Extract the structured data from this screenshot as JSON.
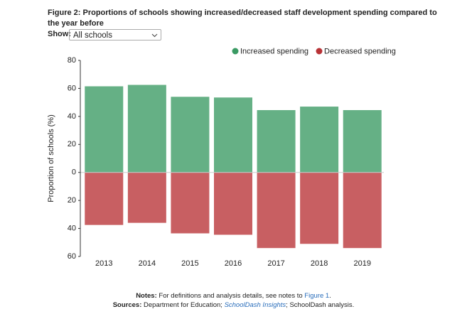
{
  "page": {
    "show_label": "Show:",
    "show_value": "All schools",
    "notes": [
      "Notes:",
      "For definitions and analysis details, see notes to",
      "Figure 1",
      "."
    ],
    "sources": [
      "Sources:",
      "Department for Education;",
      "SchoolDash Insights",
      "; SchoolDash analysis."
    ]
  },
  "chart_data": {
    "type": "diverging_bar",
    "title": "Figure 2: Proportions of schools showing increased/decreased staff development spending compared to the year before",
    "y_label": "Proportion of schools (%)",
    "categories": [
      "2013",
      "2014",
      "2015",
      "2016",
      "2017",
      "2018",
      "2019"
    ],
    "series": [
      {
        "name": "Increased spending",
        "color": "#3a9a63",
        "values": [
          61.5,
          62.5,
          54,
          53.5,
          44.5,
          47,
          44.5
        ]
      },
      {
        "name": "Decreased spending",
        "color": "#b83236",
        "values": [
          -37.5,
          -36,
          -43.5,
          -44.5,
          -54,
          -51,
          -54
        ]
      }
    ],
    "ylim": [
      -60,
      80
    ],
    "yticks": [
      {
        "value": -60,
        "label": "60"
      },
      {
        "value": -40,
        "label": "40"
      },
      {
        "value": -20,
        "label": "20"
      },
      0,
      20,
      40,
      60,
      80
    ],
    "legend": "top-right"
  }
}
